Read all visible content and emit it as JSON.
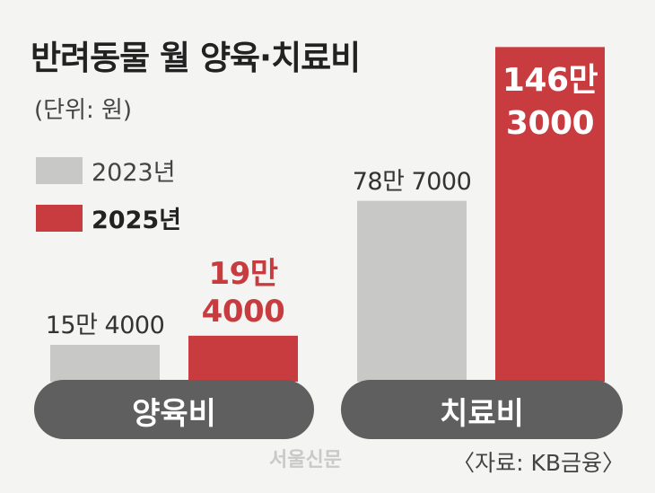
{
  "title": "반려동물 월 양육·치료비",
  "unit": "(단위: 원)",
  "legend": [
    {
      "label": "2023년",
      "color": "#c8c8c6"
    },
    {
      "label": "2025년",
      "color": "#c83c40"
    }
  ],
  "chart_data": {
    "type": "bar",
    "categories": [
      "양육비",
      "치료비"
    ],
    "series": [
      {
        "name": "2023년",
        "color": "#c8c8c6",
        "values": [
          154000,
          787000
        ],
        "labels": [
          "15만 4000",
          "78만 7000"
        ]
      },
      {
        "name": "2025년",
        "color": "#c83c40",
        "values": [
          194000,
          1463000
        ],
        "labels": [
          "19만\n4000",
          "146만\n3000"
        ]
      }
    ],
    "ylim": [
      0,
      1500000
    ]
  },
  "source": "〈자료: KB금융〉",
  "logo_text": "서울신문"
}
